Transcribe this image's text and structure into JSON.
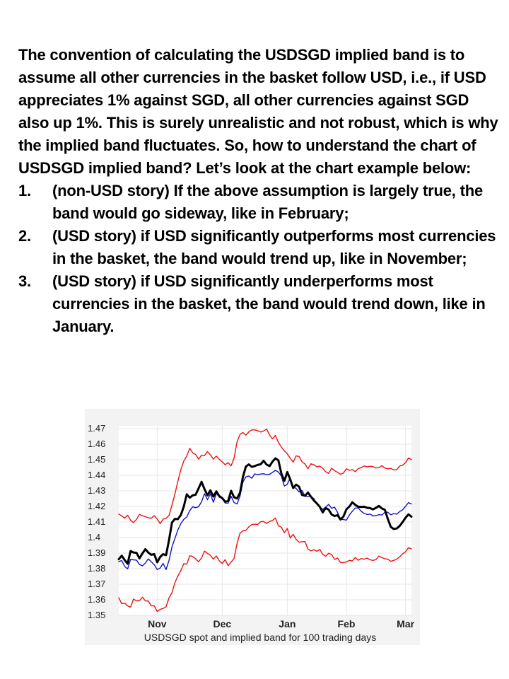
{
  "intro": "The convention of calculating the USDSGD implied band  is to assume all other currencies in the basket follow USD, i.e., if USD appreciates 1% against SGD, all other currencies against SGD also up 1%. This is surely unrealistic and not robust, which is why the implied band fluctuates. So, how to understand the chart of USDSGD implied band? Let’s look at the chart example below:",
  "points": [
    {
      "num": "1.",
      "text": "(non-USD story) If the above assumption is largely true, the band would go sideway, like in February;"
    },
    {
      "num": "2.",
      "text": "(USD story) if USD significantly outperforms most currencies in the basket, the band would trend up,  like in November;"
    },
    {
      "num": "3.",
      "text": "(USD story) if USD significantly underperforms most currencies in the basket, the band would trend down, like in January."
    }
  ],
  "chart_data": {
    "type": "line",
    "title": "",
    "caption": "USDSGD spot and implied band for 100 trading days",
    "xlabel": "",
    "ylabel": "",
    "ylim": [
      1.35,
      1.47
    ],
    "yticks": [
      "1.47",
      "1.46",
      "1.45",
      "1.44",
      "1.43",
      "1.42",
      "1.41",
      "1.4",
      "1.39",
      "1.38",
      "1.37",
      "1.36",
      "1.35"
    ],
    "xticks": [
      {
        "label": "Nov",
        "x": 13
      },
      {
        "label": "Dec",
        "x": 35
      },
      {
        "label": "Jan",
        "x": 57
      },
      {
        "label": "Feb",
        "x": 77
      },
      {
        "label": "Mar",
        "x": 97
      }
    ],
    "grid": true,
    "colors": {
      "upper": "#ee1111",
      "lower": "#ee1111",
      "mid": "#1111cc",
      "spot": "#000000"
    },
    "series": [
      {
        "key": "upper",
        "values": [
          1.4151,
          1.4139,
          1.4125,
          1.4143,
          1.4112,
          1.4096,
          1.4117,
          1.4149,
          1.414,
          1.4134,
          1.4127,
          1.4124,
          1.4141,
          1.4119,
          1.4089,
          1.4118,
          1.4123,
          1.4142,
          1.4209,
          1.4281,
          1.4362,
          1.4436,
          1.4492,
          1.4524,
          1.4573,
          1.4545,
          1.4534,
          1.4504,
          1.4529,
          1.4527,
          1.4552,
          1.4531,
          1.4505,
          1.4523,
          1.4503,
          1.4486,
          1.4468,
          1.4481,
          1.4461,
          1.451,
          1.4615,
          1.4663,
          1.4675,
          1.4658,
          1.4679,
          1.4692,
          1.4692,
          1.4687,
          1.4678,
          1.4685,
          1.4697,
          1.4659,
          1.4634,
          1.4657,
          1.4611,
          1.4582,
          1.4557,
          1.4538,
          1.4509,
          1.4485,
          1.4525,
          1.4521,
          1.4486,
          1.4473,
          1.4442,
          1.4474,
          1.4468,
          1.4455,
          1.4459,
          1.4445,
          1.4423,
          1.4412,
          1.4446,
          1.443,
          1.4419,
          1.4407,
          1.4414,
          1.4442,
          1.4432,
          1.4437,
          1.4423,
          1.4443,
          1.4449,
          1.446,
          1.4454,
          1.4458,
          1.4456,
          1.4447,
          1.4449,
          1.4462,
          1.4447,
          1.4442,
          1.4444,
          1.4435,
          1.4436,
          1.4459,
          1.4465,
          1.4481,
          1.4511,
          1.4501
        ]
      },
      {
        "key": "mid",
        "values": [
          1.3846,
          1.3852,
          1.3814,
          1.3798,
          1.3859,
          1.3857,
          1.3855,
          1.3827,
          1.3818,
          1.3836,
          1.3863,
          1.3844,
          1.3825,
          1.3794,
          1.3804,
          1.3834,
          1.3794,
          1.3853,
          1.3941,
          1.3995,
          1.4049,
          1.4089,
          1.4117,
          1.4132,
          1.4173,
          1.4198,
          1.4192,
          1.4198,
          1.423,
          1.4282,
          1.4243,
          1.4281,
          1.4227,
          1.4284,
          1.4259,
          1.4252,
          1.4222,
          1.4221,
          1.4265,
          1.4225,
          1.4216,
          1.4266,
          1.4356,
          1.439,
          1.4395,
          1.4381,
          1.4409,
          1.4404,
          1.4408,
          1.441,
          1.4404,
          1.4406,
          1.4419,
          1.4432,
          1.4421,
          1.4395,
          1.4331,
          1.4342,
          1.4385,
          1.4326,
          1.4315,
          1.4293,
          1.4302,
          1.4265,
          1.4265,
          1.4264,
          1.425,
          1.4216,
          1.4196,
          1.4181,
          1.4196,
          1.4213,
          1.4188,
          1.4195,
          1.4161,
          1.4117,
          1.4116,
          1.4112,
          1.4145,
          1.4169,
          1.419,
          1.419,
          1.4169,
          1.4155,
          1.4148,
          1.4151,
          1.4139,
          1.4141,
          1.4147,
          1.4145,
          1.4162,
          1.4163,
          1.4146,
          1.4154,
          1.415,
          1.4167,
          1.4178,
          1.42,
          1.4224,
          1.4216
        ]
      },
      {
        "key": "lower",
        "values": [
          1.3613,
          1.3574,
          1.3579,
          1.3561,
          1.3553,
          1.3604,
          1.3593,
          1.3594,
          1.3617,
          1.3593,
          1.3592,
          1.3561,
          1.3561,
          1.3525,
          1.3538,
          1.3544,
          1.3555,
          1.3612,
          1.3646,
          1.3711,
          1.3753,
          1.3787,
          1.3832,
          1.3829,
          1.3883,
          1.3878,
          1.3863,
          1.3845,
          1.3868,
          1.3913,
          1.3898,
          1.3886,
          1.3862,
          1.3882,
          1.385,
          1.3833,
          1.3858,
          1.3819,
          1.3842,
          1.3866,
          1.3961,
          1.4028,
          1.4043,
          1.4045,
          1.4069,
          1.4083,
          1.4086,
          1.4084,
          1.4102,
          1.4103,
          1.4091,
          1.4103,
          1.411,
          1.4125,
          1.4076,
          1.4066,
          1.4031,
          1.4058,
          1.3997,
          1.4021,
          1.3988,
          1.397,
          1.3973,
          1.3974,
          1.3926,
          1.3914,
          1.3922,
          1.3912,
          1.3923,
          1.3892,
          1.388,
          1.3899,
          1.3891,
          1.3859,
          1.3868,
          1.384,
          1.3839,
          1.3843,
          1.3853,
          1.385,
          1.3872,
          1.3854,
          1.3865,
          1.3861,
          1.3868,
          1.3857,
          1.3853,
          1.3858,
          1.3881,
          1.3871,
          1.3863,
          1.3862,
          1.3847,
          1.3853,
          1.3861,
          1.3876,
          1.3895,
          1.3908,
          1.3935,
          1.3927
        ]
      },
      {
        "key": "spot",
        "values": [
          1.3861,
          1.3883,
          1.3855,
          1.3832,
          1.3913,
          1.3904,
          1.3902,
          1.3866,
          1.3898,
          1.3925,
          1.3903,
          1.3889,
          1.3893,
          1.3841,
          1.3875,
          1.3893,
          1.3887,
          1.3984,
          1.4097,
          1.412,
          1.4118,
          1.4145,
          1.4199,
          1.4278,
          1.4256,
          1.4271,
          1.4275,
          1.4316,
          1.4358,
          1.4311,
          1.4271,
          1.4303,
          1.4263,
          1.4297,
          1.4267,
          1.4253,
          1.4231,
          1.4235,
          1.43,
          1.4259,
          1.4251,
          1.4288,
          1.4389,
          1.4456,
          1.447,
          1.4454,
          1.4459,
          1.4467,
          1.4471,
          1.4493,
          1.4469,
          1.4459,
          1.4488,
          1.4509,
          1.4496,
          1.4412,
          1.4364,
          1.4421,
          1.4374,
          1.4318,
          1.434,
          1.4327,
          1.4274,
          1.4268,
          1.4289,
          1.4263,
          1.4238,
          1.4219,
          1.4197,
          1.4161,
          1.419,
          1.4179,
          1.4148,
          1.4138,
          1.4144,
          1.4116,
          1.4135,
          1.4181,
          1.4199,
          1.4227,
          1.421,
          1.4198,
          1.4197,
          1.4198,
          1.4191,
          1.4189,
          1.4181,
          1.4191,
          1.4203,
          1.4187,
          1.4178,
          1.4121,
          1.4069,
          1.4055,
          1.4058,
          1.4074,
          1.4099,
          1.4127,
          1.4149,
          1.4134
        ]
      }
    ]
  }
}
